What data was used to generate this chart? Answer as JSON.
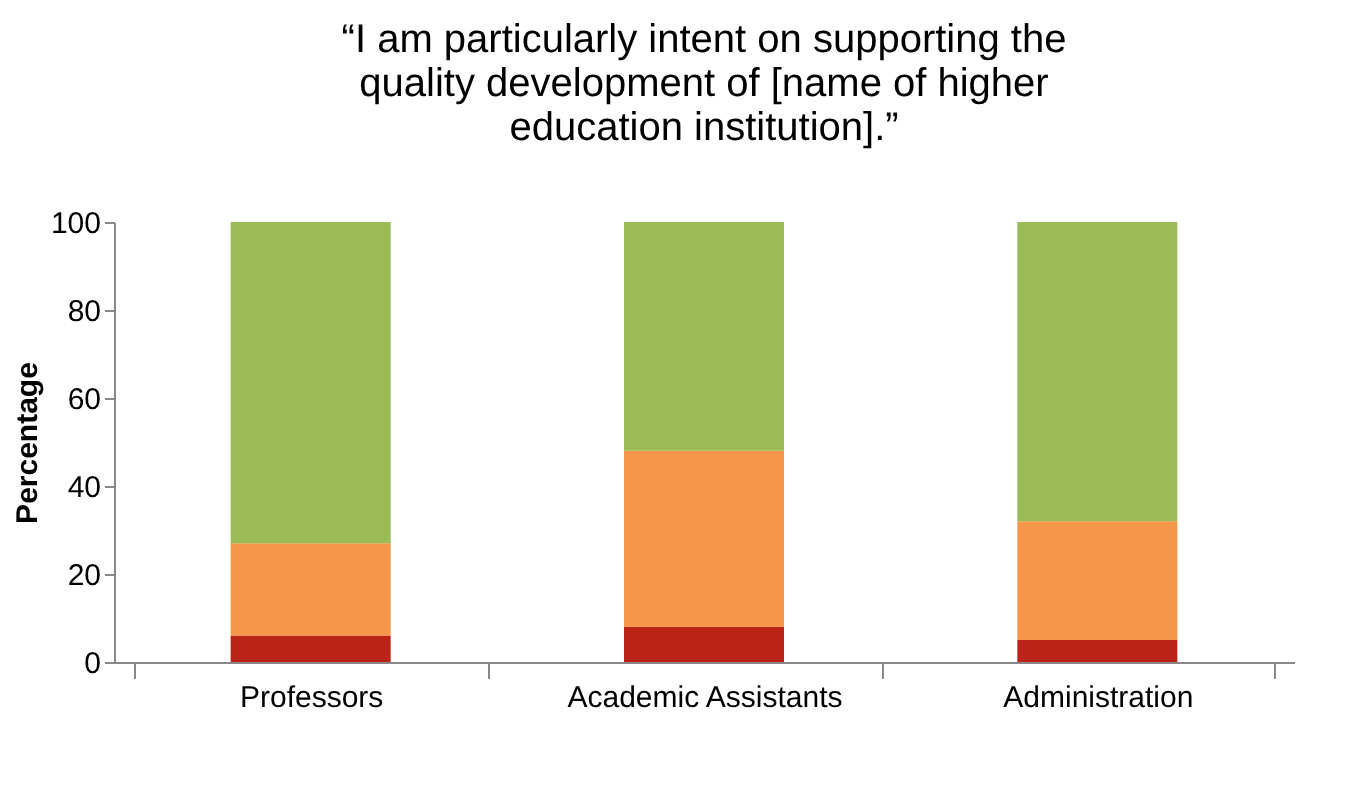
{
  "chart_data": {
    "type": "bar",
    "title": [
      "“I am particularly intent on supporting the",
      "quality development of [name of higher",
      "education institution].”"
    ],
    "categories": [
      "Professors",
      "Academic Assistants",
      "Administration"
    ],
    "stacked": true,
    "ylabel": "Percentage",
    "ylim": [
      0,
      100
    ],
    "yticks": [
      0,
      20,
      40,
      60,
      80,
      100
    ],
    "grid": false,
    "series": [
      {
        "color": "#bb2319",
        "values": [
          6,
          8,
          5
        ]
      },
      {
        "color": "#f59649",
        "values": [
          21,
          40,
          27
        ]
      },
      {
        "color": "#9abb56",
        "values": [
          73,
          52,
          68
        ]
      }
    ]
  }
}
